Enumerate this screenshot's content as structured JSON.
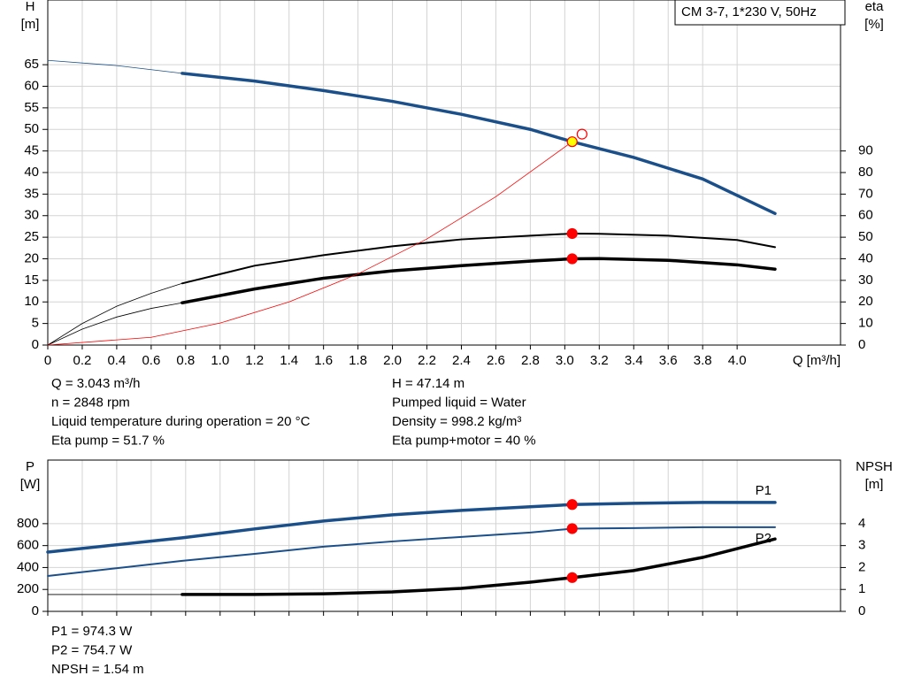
{
  "chart_data": [
    {
      "type": "line",
      "title": "CM 3-7, 1*230 V, 50Hz",
      "ylabel": "H",
      "yunit": "[m]",
      "y2label": "eta",
      "y2unit": "[%]",
      "xlabel": "Q [m³/h]",
      "xlim": [
        0,
        4.6
      ],
      "ylim": [
        0,
        80
      ],
      "y2lim": [
        0,
        160
      ],
      "xticks": [
        0,
        0.2,
        0.4,
        0.6,
        0.8,
        {
          "value": 1,
          "label": "1.0"
        },
        1.2,
        1.4,
        1.6,
        1.8,
        {
          "value": 2,
          "label": "2.0"
        },
        2.2,
        2.4,
        2.6,
        2.8,
        {
          "value": 3,
          "label": "3.0"
        },
        3.2,
        3.4,
        3.6,
        3.8,
        {
          "value": 4,
          "label": "4.0"
        }
      ],
      "xtick_labels": true,
      "yticks": [
        0,
        5,
        10,
        15,
        20,
        25,
        30,
        35,
        40,
        45,
        50,
        55,
        60,
        65
      ],
      "y2ticks": [
        0,
        10,
        20,
        30,
        40,
        50,
        60,
        70,
        80,
        90
      ],
      "grid": true,
      "series": [
        {
          "axis": "y",
          "color": "#1b4f8a",
          "style": "thin",
          "x": [
            0,
            0.4,
            0.78
          ],
          "values": [
            66,
            64.8,
            63
          ]
        },
        {
          "axis": "y",
          "color": "#1b4f8a",
          "style": "thick",
          "x": [
            0.78,
            1.2,
            1.6,
            2.0,
            2.4,
            2.8,
            3.043,
            3.4,
            3.8,
            4.22
          ],
          "values": [
            63,
            61.2,
            59,
            56.5,
            53.5,
            50,
            47.14,
            43.5,
            38.5,
            30.5
          ]
        },
        {
          "axis": "y2",
          "color": "#000000",
          "style": "thin",
          "x": [
            0,
            0.2,
            0.4,
            0.6,
            0.78
          ],
          "values": [
            0,
            10,
            18,
            24,
            28.6
          ]
        },
        {
          "axis": "y2",
          "color": "#000000",
          "style": "medium",
          "x": [
            0.78,
            1.2,
            1.6,
            2.0,
            2.4,
            2.8,
            3.043,
            3.2,
            3.6,
            4.0,
            4.22
          ],
          "values": [
            28.6,
            36.8,
            41.7,
            45.8,
            49,
            50.7,
            51.7,
            51.6,
            50.7,
            48.7,
            45.4
          ]
        },
        {
          "axis": "y2",
          "color": "#000000",
          "style": "thin",
          "x": [
            0,
            0.2,
            0.4,
            0.6,
            0.78
          ],
          "values": [
            0,
            7.4,
            13,
            17,
            19.6
          ]
        },
        {
          "axis": "y2",
          "color": "#000000",
          "style": "thick",
          "x": [
            0.78,
            1.2,
            1.6,
            2.0,
            2.4,
            2.8,
            3.043,
            3.2,
            3.6,
            4.0,
            4.22
          ],
          "values": [
            19.6,
            26,
            31,
            34.4,
            36.8,
            38.9,
            40,
            40.1,
            39.3,
            37.2,
            35.2
          ]
        },
        {
          "axis": "y",
          "color": "#ff0000",
          "style": "thin",
          "x": [
            0,
            0.6,
            1.0,
            1.4,
            1.8,
            2.2,
            2.6,
            3.043
          ],
          "values": [
            0,
            1.8,
            5.1,
            10,
            16.5,
            24.6,
            34.4,
            47.14
          ]
        }
      ],
      "markers": [
        {
          "axis": "y",
          "x": 3.1,
          "value": 48.9,
          "color": "none",
          "edge": "#ff0000"
        },
        {
          "axis": "y",
          "x": 3.043,
          "value": 47.14,
          "color": "#ffff00",
          "edge": "#ff0000"
        },
        {
          "axis": "y2",
          "x": 3.043,
          "value": 51.7,
          "color": "#ff0000",
          "edge": "#ff0000"
        },
        {
          "axis": "y2",
          "x": 3.043,
          "value": 40,
          "color": "#ff0000",
          "edge": "#ff0000"
        }
      ]
    },
    {
      "type": "line",
      "ylabel": "P",
      "yunit": "[W]",
      "y2label": "NPSH",
      "y2unit": "[m]",
      "xlim": [
        0,
        4.6
      ],
      "ylim": [
        0,
        1380
      ],
      "y2lim": [
        0,
        6.9
      ],
      "xticks": [
        0,
        0.2,
        0.4,
        0.6,
        0.8,
        1,
        1.2,
        1.4,
        1.6,
        1.8,
        2,
        2.2,
        2.4,
        2.6,
        2.8,
        3,
        3.2,
        3.4,
        3.6,
        3.8,
        4
      ],
      "xtick_labels": false,
      "yticks": [
        0,
        200,
        400,
        600,
        800
      ],
      "y2ticks": [
        0,
        1,
        2,
        3,
        4
      ],
      "grid": true,
      "series": [
        {
          "name": "P1",
          "axis": "y",
          "color": "#1b4f8a",
          "style": "thick",
          "x": [
            0,
            0.78,
            1.2,
            1.6,
            2.0,
            2.4,
            2.8,
            3.043,
            3.4,
            3.8,
            4.22
          ],
          "values": [
            541,
            671,
            752,
            824,
            881,
            921,
            954,
            974.3,
            986,
            994,
            994
          ]
        },
        {
          "name": "P2",
          "axis": "y",
          "color": "#1b4f8a",
          "style": "medium",
          "x": [
            0,
            0.78,
            1.2,
            1.6,
            2.0,
            2.4,
            2.8,
            3.043,
            3.4,
            3.8,
            4.22
          ],
          "values": [
            323,
            461,
            525,
            590,
            638,
            679,
            719,
            754.7,
            760,
            768,
            768
          ]
        },
        {
          "axis": "y2",
          "color": "#000000",
          "style": "thin",
          "x": [
            0,
            0.78
          ],
          "values": [
            0.77,
            0.77
          ]
        },
        {
          "axis": "y2",
          "color": "#000000",
          "style": "thick",
          "x": [
            0.78,
            1.2,
            1.6,
            2.0,
            2.4,
            2.8,
            3.043,
            3.4,
            3.8,
            4.22
          ],
          "values": [
            0.77,
            0.77,
            0.8,
            0.89,
            1.05,
            1.33,
            1.54,
            1.86,
            2.46,
            3.3
          ]
        }
      ],
      "markers": [
        {
          "axis": "y",
          "x": 3.043,
          "value": 974.3,
          "color": "#ff0000",
          "edge": "#ff0000"
        },
        {
          "axis": "y",
          "x": 3.043,
          "value": 754.7,
          "color": "#ff0000",
          "edge": "#ff0000"
        },
        {
          "axis": "y2",
          "x": 3.043,
          "value": 1.54,
          "color": "#ff0000",
          "edge": "#ff0000"
        }
      ]
    }
  ],
  "readout_top_left": [
    "Q = 3.043 m³/h",
    "n = 2848 rpm",
    "Liquid temperature during operation = 20 °C",
    "Eta pump = 51.7 %"
  ],
  "readout_top_right": [
    "H = 47.14 m",
    "Pumped liquid = Water",
    "Density = 998.2 kg/m³",
    "Eta pump+motor = 40 %"
  ],
  "readout_bottom": [
    "P1 = 974.3 W",
    "P2 = 754.7 W",
    "NPSH = 1.54 m"
  ]
}
